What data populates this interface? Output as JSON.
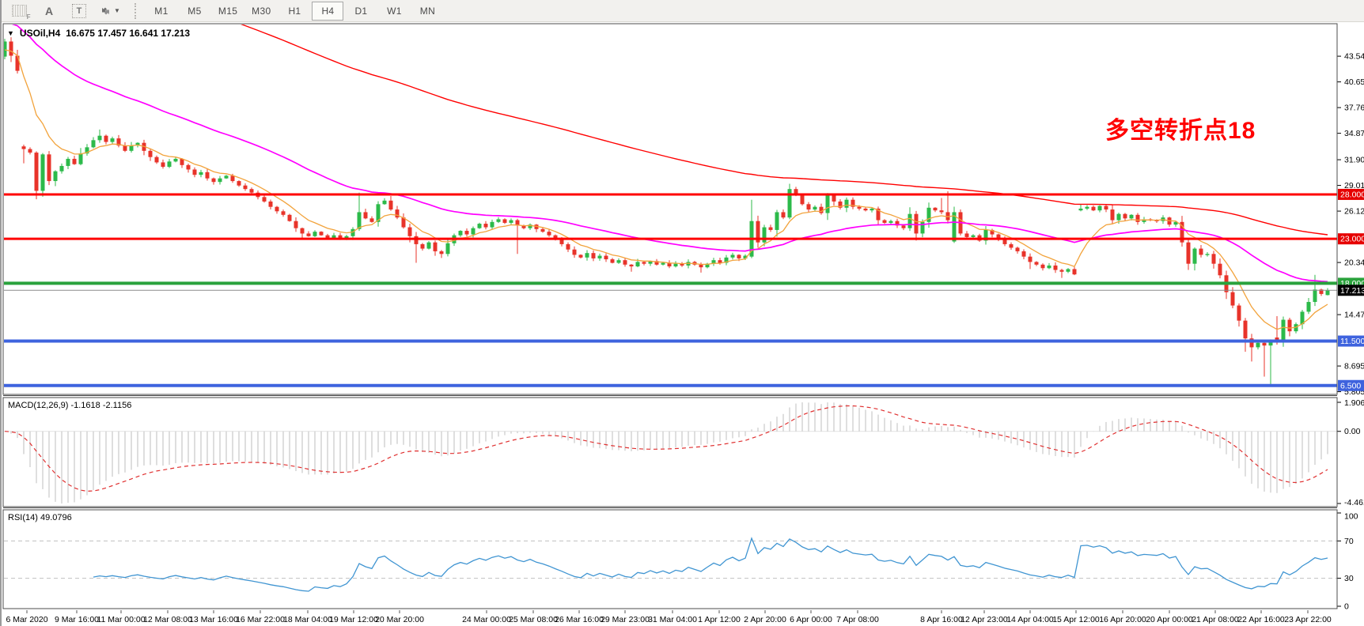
{
  "toolbar": {
    "tools": {
      "grid_label": "F",
      "text_a": "A",
      "text_t": "T"
    },
    "timeframes": [
      "M1",
      "M5",
      "M15",
      "M30",
      "H1",
      "H4",
      "D1",
      "W1",
      "MN"
    ],
    "active_timeframe": "H4"
  },
  "chart": {
    "symbol": "USOil,H4",
    "ohlc": "16.675 17.457 16.641 17.213",
    "annotation": {
      "text": "多空转折点18",
      "color": "#ff0000"
    },
    "macd_label": "MACD(12,26,9) -1.1618 -2.1156",
    "rsi_label": "RSI(14) 49.0796"
  },
  "price_axis": {
    "ticks": [
      {
        "v": 43.545,
        "label": "43.545"
      },
      {
        "v": 40.655,
        "label": "40.655"
      },
      {
        "v": 37.765,
        "label": "37.765"
      },
      {
        "v": 34.875,
        "label": "34.875"
      },
      {
        "v": 31.9,
        "label": "31.900"
      },
      {
        "v": 29.01,
        "label": "29.010"
      },
      {
        "v": 26.12,
        "label": "26.120"
      },
      {
        "v": 20.34,
        "label": "20.340"
      },
      {
        "v": 14.475,
        "label": "14.475"
      },
      {
        "v": 8.695,
        "label": "8.695"
      },
      {
        "v": 5.805,
        "label": "5.805"
      }
    ],
    "badges": [
      {
        "v": 28.0,
        "label": "28.000",
        "bg": "#e60000"
      },
      {
        "v": 23.0,
        "label": "23.000",
        "bg": "#e60000"
      },
      {
        "v": 18.0,
        "label": "18.000",
        "bg": "#2aa23c"
      },
      {
        "v": 17.213,
        "label": "17.213",
        "bg": "#000000"
      },
      {
        "v": 11.5,
        "label": "11.500",
        "bg": "#3e63de"
      },
      {
        "v": 6.5,
        "label": "6.500",
        "bg": "#3e63de"
      }
    ]
  },
  "macd_axis": {
    "max_label": "1.9069",
    "zero_label": "0.00",
    "min_label": "-4.4614"
  },
  "rsi_axis": [
    {
      "v": 100,
      "label": "100"
    },
    {
      "v": 70,
      "label": "70",
      "dashed": true
    },
    {
      "v": 30,
      "label": "30",
      "dashed": true
    },
    {
      "v": 0,
      "label": "0"
    }
  ],
  "chart_data": {
    "type": "candlestick",
    "symbol": "USOil",
    "timeframe": "H4",
    "last_candle_ohlc": {
      "open": 16.675,
      "high": 17.457,
      "low": 16.641,
      "close": 17.213
    },
    "price_range": {
      "top": 47.2,
      "bottom": 5.5
    },
    "closes": [
      45.2,
      43.6,
      41.9,
      33.1,
      32.7,
      28.4,
      32.5,
      29.5,
      30.6,
      31.2,
      32.0,
      31.4,
      32.6,
      33.3,
      34.1,
      34.6,
      33.9,
      34.3,
      33.5,
      32.9,
      33.5,
      33.8,
      32.9,
      32.2,
      31.6,
      31.1,
      31.7,
      32.0,
      31.3,
      30.8,
      30.2,
      30.5,
      29.8,
      29.4,
      29.8,
      30.1,
      29.5,
      29.0,
      28.6,
      28.2,
      27.7,
      27.2,
      26.6,
      26.1,
      25.7,
      25.0,
      24.2,
      23.6,
      23.3,
      23.8,
      23.4,
      23.1,
      23.4,
      23.0,
      23.3,
      24.1,
      26.0,
      25.3,
      24.9,
      26.9,
      27.3,
      26.3,
      25.4,
      24.3,
      23.3,
      22.4,
      21.9,
      22.6,
      21.6,
      21.3,
      22.5,
      23.4,
      23.9,
      23.5,
      24.2,
      24.7,
      24.3,
      24.9,
      25.2,
      24.8,
      25.1,
      24.5,
      24.2,
      24.6,
      24.1,
      23.8,
      23.4,
      22.9,
      22.4,
      21.8,
      21.2,
      20.9,
      21.4,
      20.8,
      21.1,
      20.7,
      20.3,
      20.6,
      20.1,
      19.9,
      20.4,
      20.2,
      20.5,
      20.1,
      20.3,
      19.9,
      20.2,
      20.0,
      20.4,
      20.1,
      19.8,
      20.2,
      20.6,
      20.3,
      20.9,
      21.2,
      20.8,
      21.1,
      25.0,
      22.6,
      24.3,
      24.0,
      26.0,
      25.4,
      28.6,
      27.9,
      26.9,
      26.3,
      26.6,
      25.9,
      28.0,
      27.2,
      26.5,
      27.4,
      26.6,
      26.4,
      26.2,
      26.4,
      25.1,
      24.8,
      25.0,
      24.5,
      24.2,
      25.8,
      23.6,
      24.9,
      26.5,
      26.2,
      26.0,
      25.1,
      26.0,
      23.6,
      23.2,
      23.4,
      22.8,
      24.0,
      23.5,
      23.0,
      22.4,
      22.0,
      21.6,
      21.0,
      20.4,
      20.1,
      19.7,
      20.0,
      19.5,
      19.3,
      19.6,
      19.0,
      26.4,
      26.6,
      26.2,
      26.7,
      26.3,
      25.1,
      25.8,
      25.3,
      25.7,
      24.9,
      25.2,
      25.1,
      25.0,
      25.4,
      24.6,
      24.9,
      22.6,
      20.2,
      21.9,
      21.2,
      21.3,
      20.2,
      18.9,
      17.0,
      15.5,
      13.8,
      11.8,
      10.8,
      11.3,
      11.0,
      11.6,
      11.4,
      13.9,
      12.6,
      13.4,
      14.8,
      15.9,
      17.3,
      16.8,
      17.213
    ],
    "open_overrides": {
      "0": 43.5,
      "3": 33.4,
      "118": 21.0,
      "150": 22.7,
      "170": 26.2,
      "201": 11.9,
      "209": 16.675
    },
    "high_overrides": {
      "0": 45.5,
      "3": 33.6,
      "15": 35.3,
      "56": 28.2,
      "118": 27.4,
      "124": 29.2,
      "130": 28.15,
      "148": 27.6,
      "149": 28.35,
      "170": 26.9,
      "201": 14.3,
      "207": 18.95,
      "209": 17.457
    },
    "low_overrides": {
      "0": 43.2,
      "2": 41.6,
      "3": 31.5,
      "5": 27.45,
      "47": 22.9,
      "64": 22.6,
      "65": 20.3,
      "69": 20.85,
      "81": 21.3,
      "99": 19.3,
      "110": 19.2,
      "162": 19.6,
      "167": 18.6,
      "187": 19.5,
      "196": 10.3,
      "197": 9.2,
      "199": 7.5,
      "200": 6.35,
      "209": 16.641
    },
    "levels": [
      {
        "price": 28.0,
        "color": "#ff0000",
        "width": 3
      },
      {
        "price": 23.0,
        "color": "#ff0000",
        "width": 3
      },
      {
        "price": 18.0,
        "color": "#2aa23c",
        "width": 4
      },
      {
        "price": 11.5,
        "color": "#3e63de",
        "width": 4
      },
      {
        "price": 6.5,
        "color": "#3e63de",
        "width": 4
      }
    ],
    "current_price": 17.213,
    "moving_averages": [
      {
        "name": "fast-ma",
        "period": 8,
        "seed": 44,
        "color": "#f2a33c",
        "width": 1.3
      },
      {
        "name": "mid-ma",
        "period": 42,
        "seed": 47.5,
        "color": "#ff00ff",
        "width": 1.7
      },
      {
        "name": "slow-ma",
        "period": 140,
        "seed": 58,
        "color": "#ff0000",
        "width": 1.4
      }
    ],
    "macd": {
      "fast": 12,
      "slow": 26,
      "signal": 9,
      "hist_color": "#c9c9c9",
      "signal_color": "#e03030",
      "main_value": -1.1618,
      "signal_value": -2.1156
    },
    "rsi": {
      "period": 14,
      "color": "#4095d2",
      "levels": [
        70,
        30
      ],
      "value": 49.0796
    },
    "candle_colors": {
      "up": "#2cba4a",
      "down": "#e8332a"
    },
    "dates": [
      "6 Mar 2020",
      "9 Mar 16:00",
      "11 Mar 00:00",
      "12 Mar 08:00",
      "13 Mar 16:00",
      "16 Mar 22:00",
      "18 Mar 04:00",
      "19 Mar 12:00",
      "20 Mar 20:00",
      "24 Mar 00:00",
      "25 Mar 08:00",
      "26 Mar 16:00",
      "29 Mar 23:00",
      "31 Mar 04:00",
      "1 Apr 12:00",
      "2 Apr 20:00",
      "6 Apr 00:00",
      "7 Apr 08:00",
      "8 Apr 16:00",
      "12 Apr 23:00",
      "14 Apr 04:00",
      "15 Apr 12:00",
      "16 Apr 20:00",
      "20 Apr 00:00",
      "21 Apr 08:00",
      "22 Apr 16:00",
      "23 Apr 22:00"
    ]
  }
}
